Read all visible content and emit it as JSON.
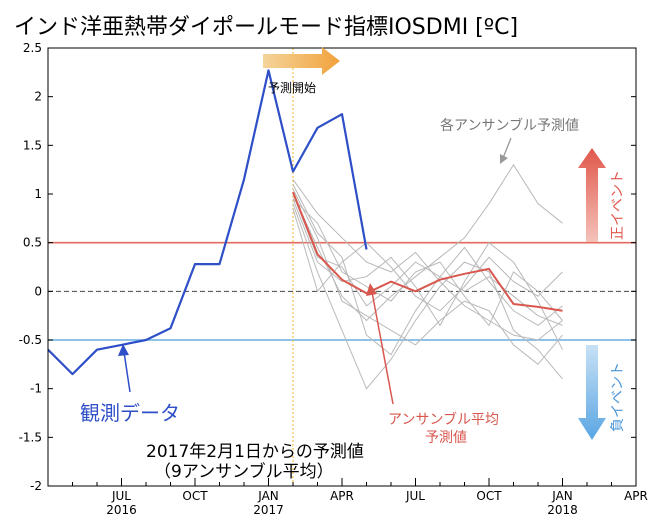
{
  "chart_data": {
    "type": "line",
    "title": "インド洋亜熱帯ダイポールモード指標IOSDMI [ºC]",
    "xlabel": "",
    "ylabel": "",
    "ylim": [
      -2,
      2.5
    ],
    "xlim": [
      "2016-04",
      "2018-04"
    ],
    "grid": false,
    "x_tick_labels": [
      {
        "x": "2016-07",
        "label": "JUL",
        "year": "2016"
      },
      {
        "x": "2016-10",
        "label": "OCT",
        "year": ""
      },
      {
        "x": "2017-01",
        "label": "JAN",
        "year": "2017"
      },
      {
        "x": "2017-04",
        "label": "APR",
        "year": ""
      },
      {
        "x": "2017-07",
        "label": "JUL",
        "year": ""
      },
      {
        "x": "2017-10",
        "label": "OCT",
        "year": ""
      },
      {
        "x": "2018-01",
        "label": "JAN",
        "year": "2018"
      },
      {
        "x": "2018-04",
        "label": "APR",
        "year": ""
      }
    ],
    "y_tick_labels": [
      "2.5",
      "2",
      "1.5",
      "1",
      "0.5",
      "0",
      "-0.5",
      "-1",
      "-1.5",
      "-2"
    ],
    "reference_lines": [
      {
        "y": 0.5,
        "color": "#e06b5e",
        "style": "solid"
      },
      {
        "y": 0,
        "color": "#444444",
        "style": "dashed"
      },
      {
        "y": -0.5,
        "color": "#6aaee0",
        "style": "solid"
      }
    ],
    "forecast_start_line": {
      "x": "2017-02-01",
      "color": "#f2c14e"
    },
    "series": [
      {
        "role": "observed",
        "color": "#2e4fc7",
        "points": [
          [
            "2016-04",
            -0.6
          ],
          [
            "2016-05",
            -0.85
          ],
          [
            "2016-06",
            -0.6
          ],
          [
            "2016-07",
            -0.55
          ],
          [
            "2016-08",
            -0.5
          ],
          [
            "2016-09",
            -0.38
          ],
          [
            "2016-10",
            0.28
          ],
          [
            "2016-11",
            0.28
          ],
          [
            "2016-12",
            1.15
          ],
          [
            "2017-01",
            2.27
          ],
          [
            "2017-02",
            1.23
          ],
          [
            "2017-03",
            1.68
          ],
          [
            "2017-04",
            1.82
          ],
          [
            "2017-05",
            0.43
          ]
        ]
      },
      {
        "role": "ensemble-mean",
        "color": "#d8574e",
        "points": [
          [
            "2017-02",
            1.02
          ],
          [
            "2017-03",
            0.38
          ],
          [
            "2017-04",
            0.12
          ],
          [
            "2017-05",
            -0.02
          ],
          [
            "2017-06",
            0.1
          ],
          [
            "2017-07",
            0.0
          ],
          [
            "2017-08",
            0.12
          ],
          [
            "2017-09",
            0.18
          ],
          [
            "2017-10",
            0.23
          ],
          [
            "2017-11",
            -0.13
          ],
          [
            "2017-12",
            -0.16
          ],
          [
            "2018-01",
            -0.2
          ]
        ]
      }
    ],
    "ensemble_members": [
      {
        "points": [
          [
            "2017-02",
            1.0
          ],
          [
            "2017-03",
            0.45
          ],
          [
            "2017-04",
            -0.05
          ],
          [
            "2017-05",
            -0.3
          ],
          [
            "2017-06",
            -0.05
          ],
          [
            "2017-07",
            0.15
          ],
          [
            "2017-08",
            0.35
          ],
          [
            "2017-09",
            0.55
          ],
          [
            "2017-10",
            0.9
          ],
          [
            "2017-11",
            1.3
          ],
          [
            "2017-12",
            0.9
          ],
          [
            "2018-01",
            0.7
          ]
        ]
      },
      {
        "points": [
          [
            "2017-02",
            0.95
          ],
          [
            "2017-03",
            0.3
          ],
          [
            "2017-04",
            0.1
          ],
          [
            "2017-05",
            0.15
          ],
          [
            "2017-06",
            0.35
          ],
          [
            "2017-07",
            0.05
          ],
          [
            "2017-08",
            -0.35
          ],
          [
            "2017-09",
            0.1
          ],
          [
            "2017-10",
            0.5
          ],
          [
            "2017-11",
            0.3
          ],
          [
            "2017-12",
            -0.1
          ],
          [
            "2018-01",
            -0.6
          ]
        ]
      },
      {
        "points": [
          [
            "2017-02",
            1.15
          ],
          [
            "2017-03",
            0.8
          ],
          [
            "2017-04",
            0.55
          ],
          [
            "2017-05",
            0.3
          ],
          [
            "2017-06",
            0.2
          ],
          [
            "2017-07",
            0.4
          ],
          [
            "2017-08",
            0.1
          ],
          [
            "2017-09",
            -0.15
          ],
          [
            "2017-10",
            -0.3
          ],
          [
            "2017-11",
            -0.45
          ],
          [
            "2017-12",
            -0.5
          ],
          [
            "2018-01",
            -0.3
          ]
        ]
      },
      {
        "points": [
          [
            "2017-02",
            0.9
          ],
          [
            "2017-03",
            0.2
          ],
          [
            "2017-04",
            -0.4
          ],
          [
            "2017-05",
            -1.0
          ],
          [
            "2017-06",
            -0.7
          ],
          [
            "2017-07",
            -0.3
          ],
          [
            "2017-08",
            0.05
          ],
          [
            "2017-09",
            0.3
          ],
          [
            "2017-10",
            0.2
          ],
          [
            "2017-11",
            -0.4
          ],
          [
            "2017-12",
            -0.6
          ],
          [
            "2018-01",
            -0.9
          ]
        ]
      },
      {
        "points": [
          [
            "2017-02",
            1.1
          ],
          [
            "2017-03",
            0.6
          ],
          [
            "2017-04",
            0.35
          ],
          [
            "2017-05",
            -0.45
          ],
          [
            "2017-06",
            -0.65
          ],
          [
            "2017-07",
            -0.2
          ],
          [
            "2017-08",
            0.15
          ],
          [
            "2017-09",
            0.45
          ],
          [
            "2017-10",
            0.1
          ],
          [
            "2017-11",
            -0.2
          ],
          [
            "2017-12",
            -0.35
          ],
          [
            "2018-01",
            -0.15
          ]
        ]
      },
      {
        "points": [
          [
            "2017-02",
            0.85
          ],
          [
            "2017-03",
            0.0
          ],
          [
            "2017-04",
            0.3
          ],
          [
            "2017-05",
            0.5
          ],
          [
            "2017-06",
            0.25
          ],
          [
            "2017-07",
            -0.05
          ],
          [
            "2017-08",
            -0.2
          ],
          [
            "2017-09",
            0.05
          ],
          [
            "2017-10",
            0.35
          ],
          [
            "2017-11",
            0.1
          ],
          [
            "2017-12",
            -0.05
          ],
          [
            "2018-01",
            0.2
          ]
        ]
      },
      {
        "points": [
          [
            "2017-02",
            1.05
          ],
          [
            "2017-03",
            0.55
          ],
          [
            "2017-04",
            -0.1
          ],
          [
            "2017-05",
            -0.25
          ],
          [
            "2017-06",
            -0.4
          ],
          [
            "2017-07",
            -0.55
          ],
          [
            "2017-08",
            -0.3
          ],
          [
            "2017-09",
            -0.1
          ],
          [
            "2017-10",
            -0.2
          ],
          [
            "2017-11",
            -0.55
          ],
          [
            "2017-12",
            -0.75
          ],
          [
            "2018-01",
            -0.45
          ]
        ]
      },
      {
        "points": [
          [
            "2017-02",
            0.95
          ],
          [
            "2017-03",
            0.7
          ],
          [
            "2017-04",
            0.2
          ],
          [
            "2017-05",
            0.05
          ],
          [
            "2017-06",
            -0.1
          ],
          [
            "2017-07",
            0.2
          ],
          [
            "2017-08",
            0.3
          ],
          [
            "2017-09",
            -0.05
          ],
          [
            "2017-10",
            -0.35
          ],
          [
            "2017-11",
            0.2
          ],
          [
            "2017-12",
            0.0
          ],
          [
            "2018-01",
            -0.3
          ]
        ]
      },
      {
        "points": [
          [
            "2017-02",
            1.0
          ],
          [
            "2017-03",
            0.35
          ],
          [
            "2017-04",
            0.25
          ],
          [
            "2017-05",
            -0.15
          ],
          [
            "2017-06",
            0.05
          ],
          [
            "2017-07",
            0.3
          ],
          [
            "2017-08",
            0.15
          ],
          [
            "2017-09",
            0.0
          ],
          [
            "2017-10",
            0.15
          ],
          [
            "2017-11",
            -0.05
          ],
          [
            "2017-12",
            -0.25
          ],
          [
            "2018-01",
            -0.35
          ]
        ]
      }
    ],
    "annotations": {
      "forecast_start": "予測開始",
      "ensemble_members": "各アンサンブル予測値",
      "positive_event": "正イベント",
      "negative_event": "負イベント",
      "observed": "観測データ",
      "ensemble_mean_line1": "アンサンブル平均",
      "ensemble_mean_line2": "予測値",
      "forecast_note_line1": "2017年2月1日からの予測値",
      "forecast_note_line2": "（9アンサンブル平均）"
    },
    "colors": {
      "observed": "#2e4fc7",
      "ensemble_mean": "#d8574e",
      "ensemble_member": "#b9b9b9",
      "positive": "#e06b5e",
      "negative": "#6aaee0",
      "forecast_arrow": "#f2a23c"
    }
  }
}
